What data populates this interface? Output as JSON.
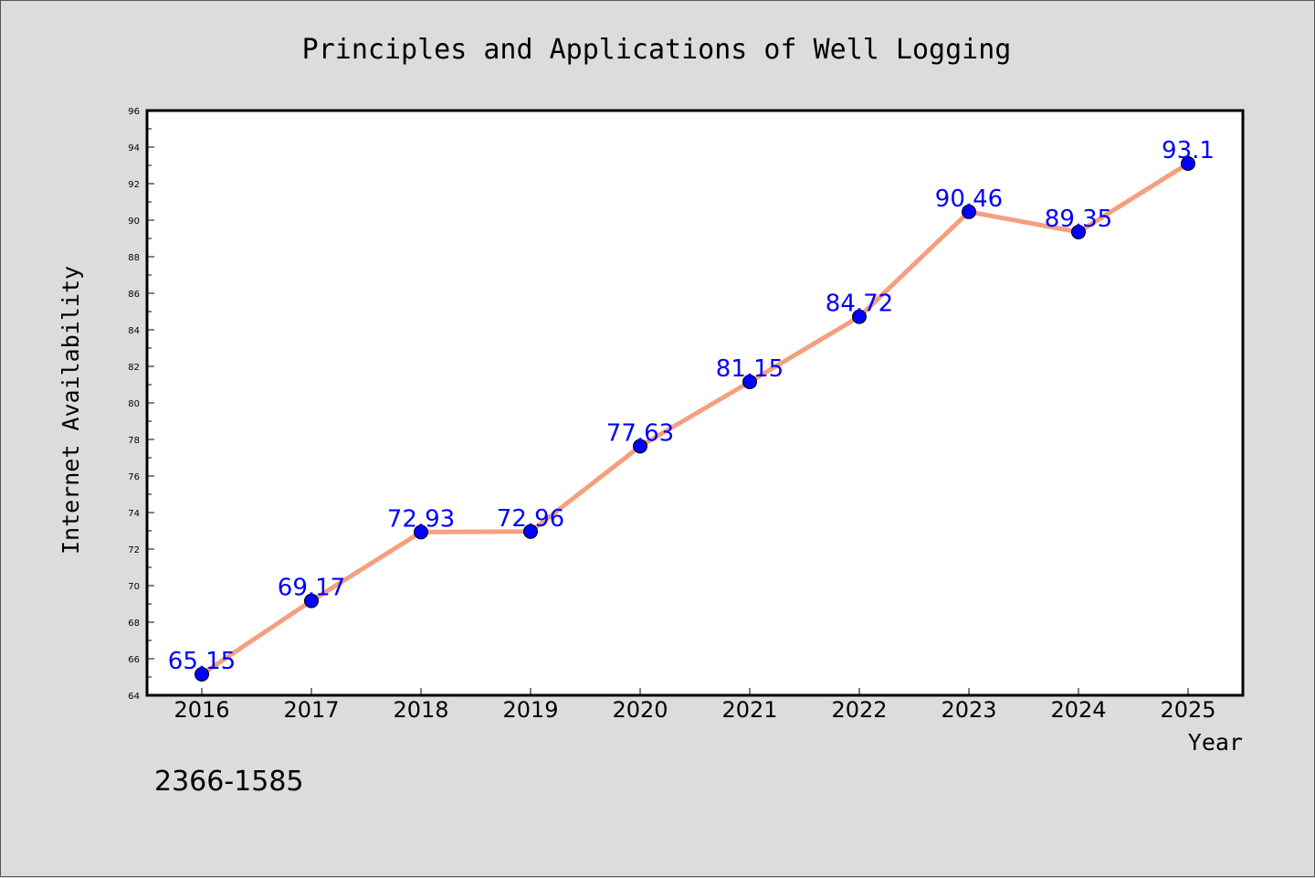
{
  "chart_data": {
    "type": "line",
    "title": "Principles and Applications of Well Logging",
    "xlabel": "Year",
    "ylabel": "Internet Availability",
    "categories": [
      "2016",
      "2017",
      "2018",
      "2019",
      "2020",
      "2021",
      "2022",
      "2023",
      "2024",
      "2025"
    ],
    "values": [
      65.15,
      69.17,
      72.93,
      72.96,
      77.63,
      81.15,
      84.72,
      90.46,
      89.35,
      93.1
    ],
    "data_labels": [
      "65.15",
      "69.17",
      "72.93",
      "72.96",
      "77.63",
      "81.15",
      "84.72",
      "90.46",
      "89.35",
      "93.1"
    ],
    "ylim": [
      64,
      96
    ],
    "yticks": [
      "64",
      "66",
      "68",
      "70",
      "72",
      "74",
      "76",
      "78",
      "80",
      "82",
      "84",
      "86",
      "88",
      "90",
      "92",
      "94",
      "96"
    ],
    "grid": false,
    "line_color": "#f4a07f",
    "marker_color": "#0000ff",
    "label_color": "#0000ff",
    "background_color": "#dcdcdc",
    "plot_background_color": "#ffffff"
  },
  "footnote": "2366-1585"
}
